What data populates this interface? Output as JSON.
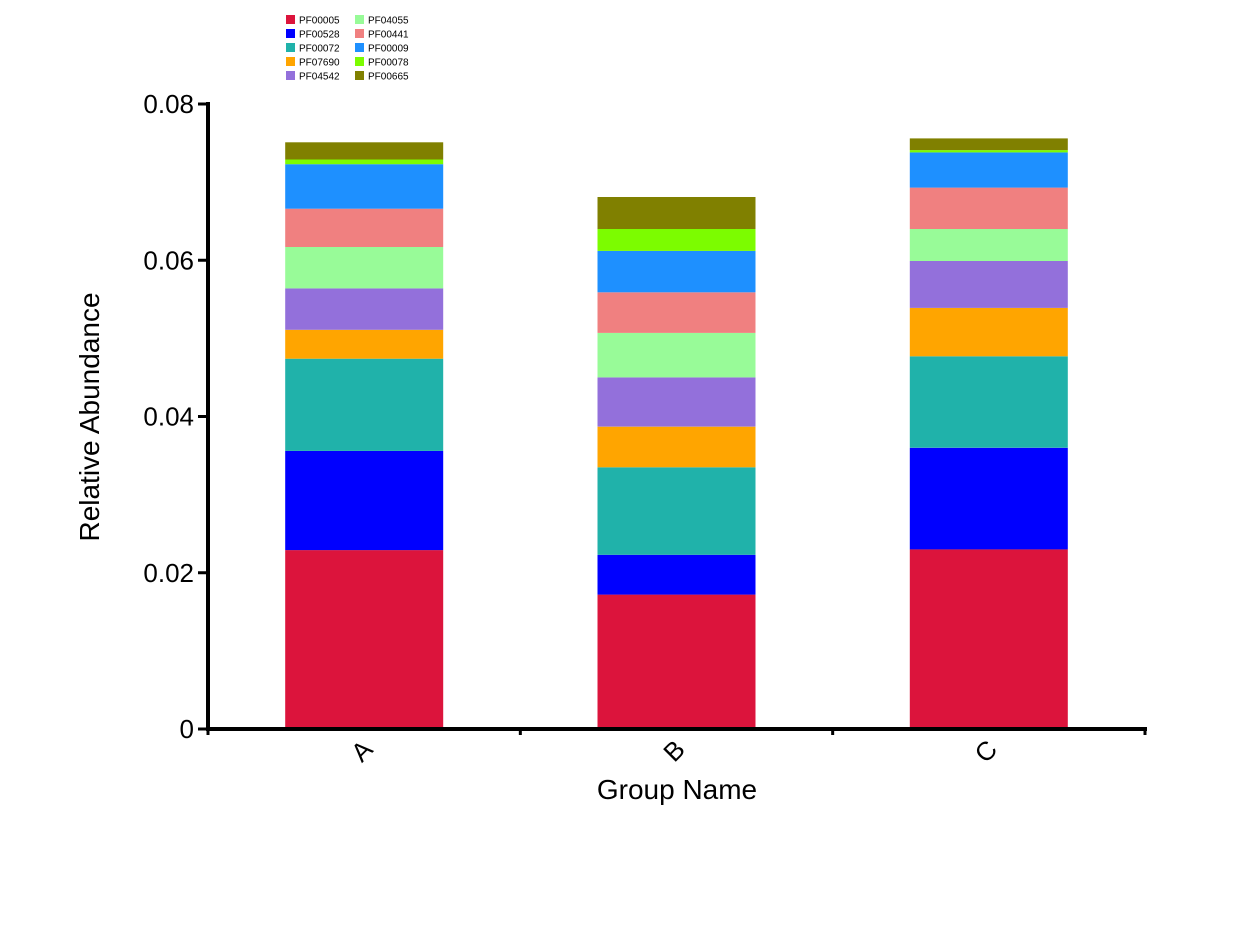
{
  "chart_data": {
    "type": "bar",
    "stacked": true,
    "categories": [
      "A",
      "B",
      "C"
    ],
    "xlabel": "Group Name",
    "ylabel": "Relative Abundance",
    "ylim": [
      0,
      0.08
    ],
    "yticks": [
      {
        "value": 0,
        "label": "0"
      },
      {
        "value": 0.02,
        "label": "0.02"
      },
      {
        "value": 0.04,
        "label": "0.04"
      },
      {
        "value": 0.06,
        "label": "0.06"
      },
      {
        "value": 0.08,
        "label": "0.08"
      }
    ],
    "legend_position": "top-left",
    "grid": false,
    "series": [
      {
        "name": "PF00005",
        "color": "#DC143C",
        "values": [
          0.0229,
          0.0172,
          0.023
        ]
      },
      {
        "name": "PF00528",
        "color": "#0000FF",
        "values": [
          0.0127,
          0.0051,
          0.013
        ]
      },
      {
        "name": "PF00072",
        "color": "#20B2AA",
        "values": [
          0.0118,
          0.0112,
          0.0117
        ]
      },
      {
        "name": "PF07690",
        "color": "#FFA500",
        "values": [
          0.0037,
          0.0052,
          0.0062
        ]
      },
      {
        "name": "PF04542",
        "color": "#9370DB",
        "values": [
          0.0053,
          0.0063,
          0.006
        ]
      },
      {
        "name": "PF04055",
        "color": "#98FB98",
        "values": [
          0.0053,
          0.0057,
          0.0041
        ]
      },
      {
        "name": "PF00441",
        "color": "#F08080",
        "values": [
          0.0049,
          0.0052,
          0.0053
        ]
      },
      {
        "name": "PF00009",
        "color": "#1E90FF",
        "values": [
          0.0057,
          0.0053,
          0.0045
        ]
      },
      {
        "name": "PF00078",
        "color": "#7CFC00",
        "values": [
          0.0006,
          0.0028,
          0.0003
        ]
      },
      {
        "name": "PF00665",
        "color": "#808000",
        "values": [
          0.0022,
          0.0041,
          0.0015
        ]
      }
    ]
  }
}
